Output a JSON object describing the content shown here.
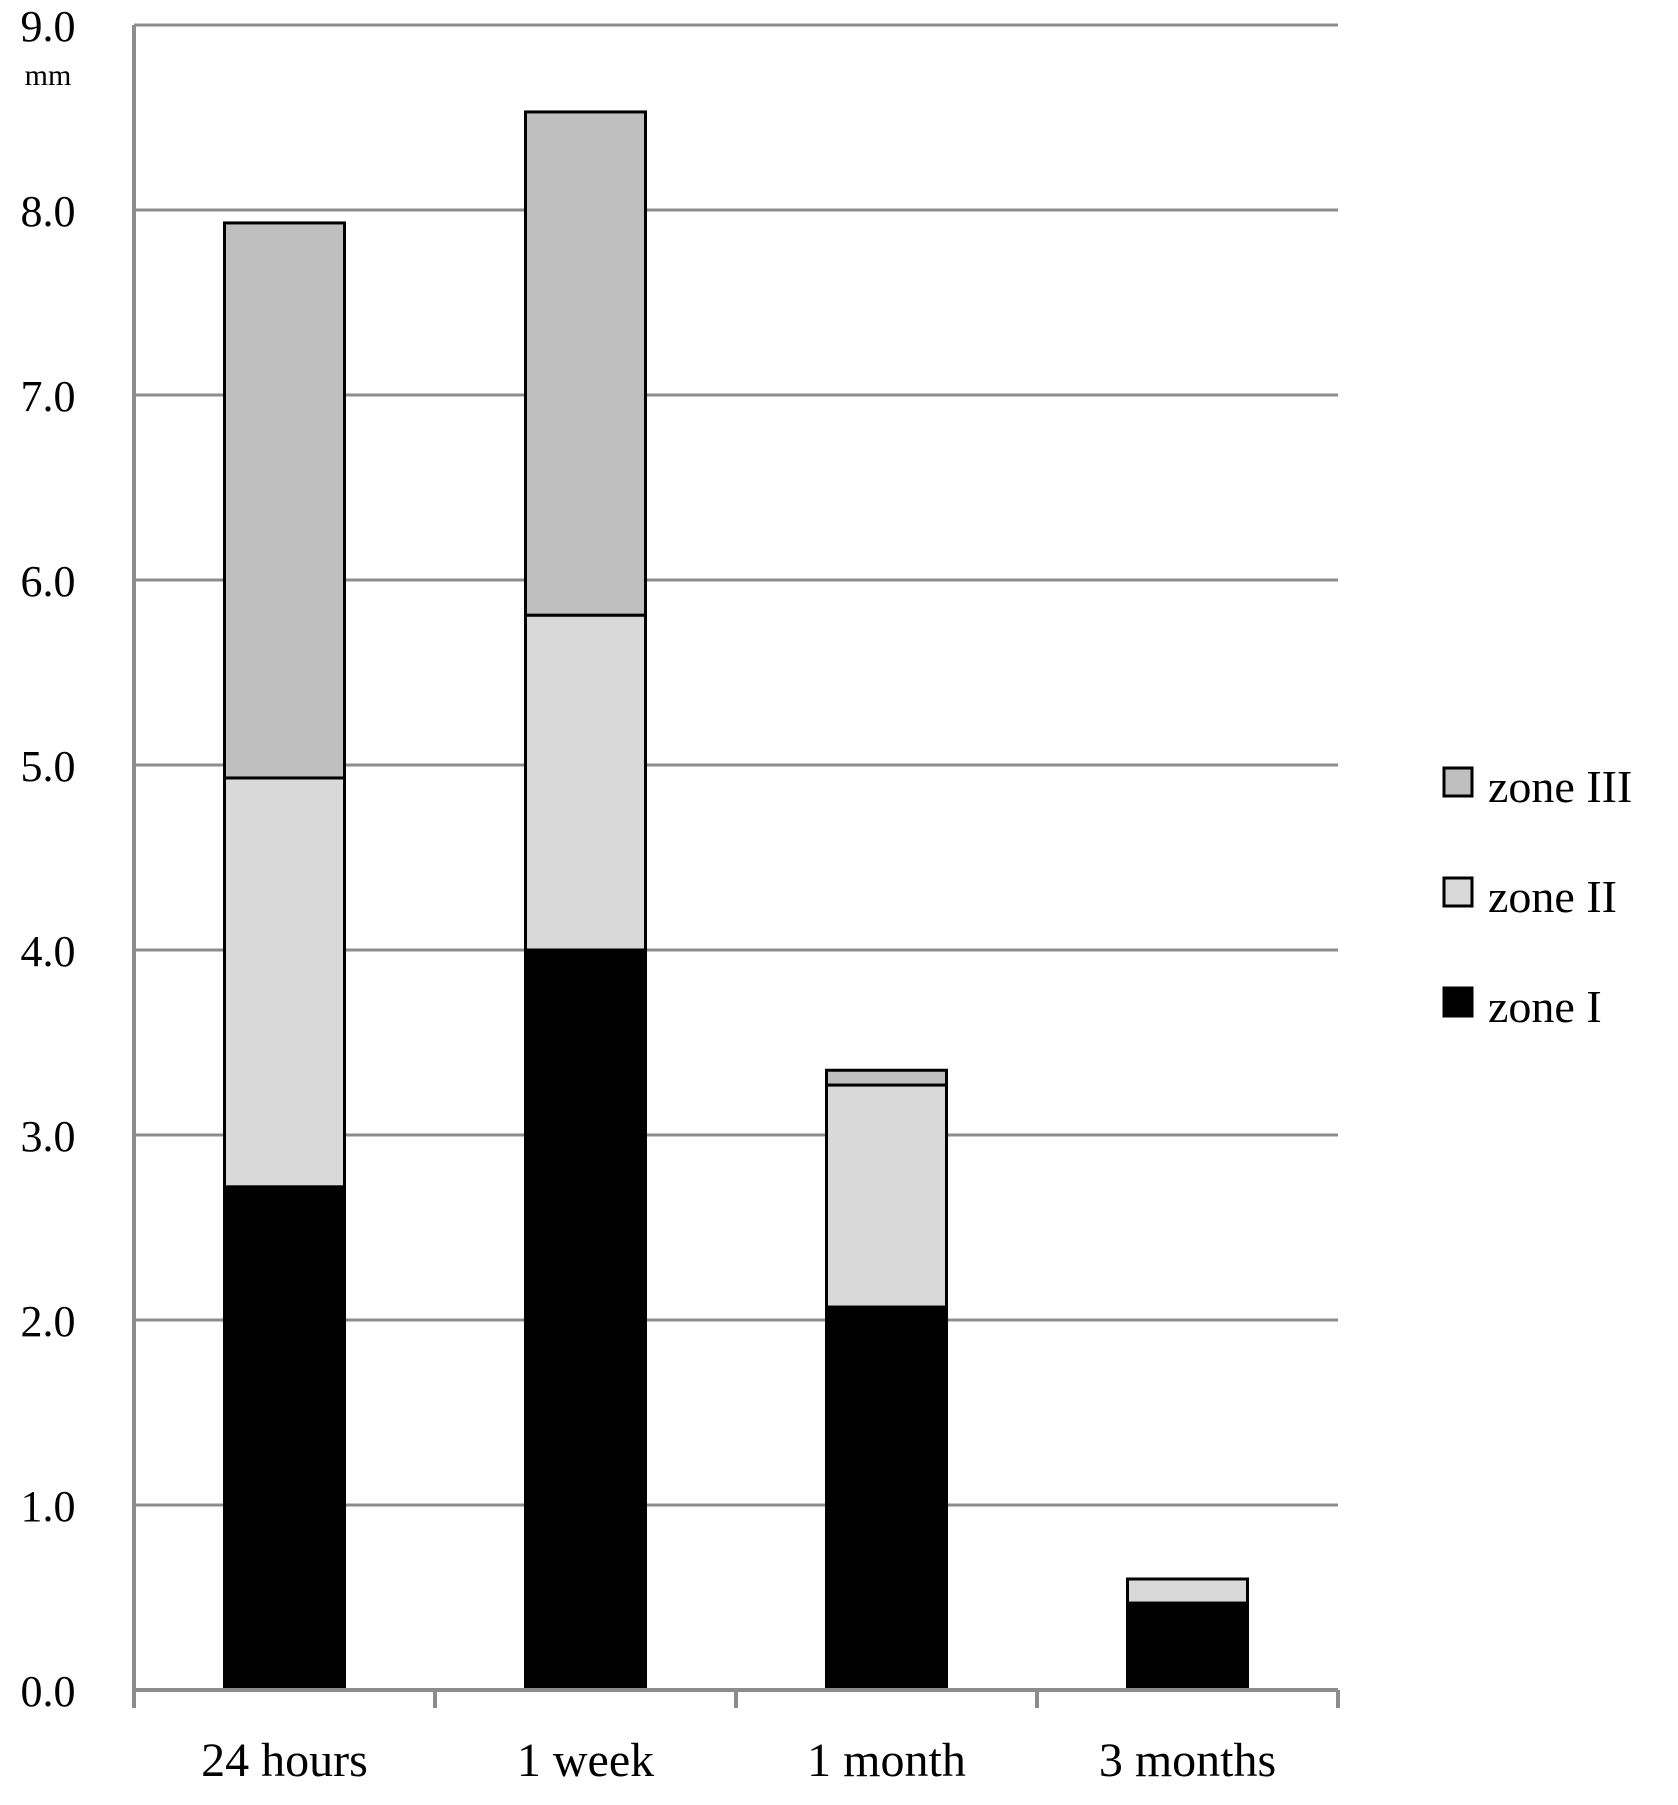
{
  "chart_data": {
    "type": "bar",
    "stacked": true,
    "categories": [
      "24 hours",
      "1 week",
      "1 month",
      "3 months"
    ],
    "series": [
      {
        "name": "zone I",
        "values": [
          2.72,
          4.0,
          2.07,
          0.47
        ],
        "color": "#000000"
      },
      {
        "name": "zone II",
        "values": [
          2.21,
          1.81,
          1.2,
          0.13
        ],
        "color": "#d9d9d9"
      },
      {
        "name": "zone III",
        "values": [
          3.0,
          2.72,
          0.08,
          0.0
        ],
        "color": "#bfbfbf"
      }
    ],
    "title": "",
    "xlabel": "",
    "ylabel": "mm",
    "ylim": [
      0,
      9
    ],
    "yticks": [
      "0.0",
      "1.0",
      "2.0",
      "3.0",
      "4.0",
      "5.0",
      "6.0",
      "7.0",
      "8.0",
      "9.0"
    ],
    "grid": true,
    "legend_position": "right",
    "legend_order": [
      "zone III",
      "zone II",
      "zone I"
    ],
    "colors": {
      "grid": "#8c8c8c",
      "bar_outline": "#000000"
    }
  }
}
